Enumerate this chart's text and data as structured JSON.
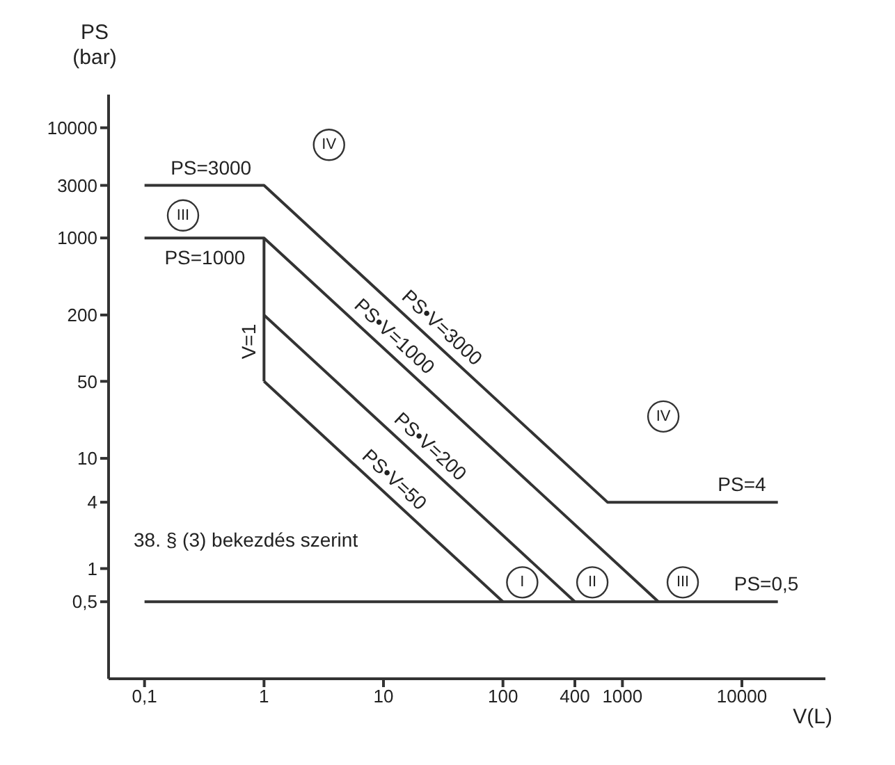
{
  "chart_data": {
    "type": "line",
    "xlabel": "V(L)",
    "ylabel": "PS (bar)",
    "log": "xy",
    "grid": false,
    "legend": false,
    "marker": "none",
    "line_style": "solid",
    "xlim": [
      0.05,
      50000
    ],
    "ylim": [
      0.1,
      20000
    ],
    "xticks": [
      {
        "value": 0.1,
        "label": "0,1"
      },
      1,
      10,
      100,
      400,
      1000,
      10000
    ],
    "yticks": [
      {
        "value": 0.5,
        "label": "0,5"
      },
      1,
      4,
      10,
      50,
      200,
      1000,
      3000,
      10000
    ],
    "series": [
      {
        "color": "#333333",
        "x": [
          0.1,
          1,
          750,
          20000
        ],
        "values": [
          3000,
          3000,
          4,
          4
        ]
      },
      {
        "color": "#333333",
        "x": [
          0.1,
          1,
          2000
        ],
        "values": [
          1000,
          1000,
          0.5
        ]
      },
      {
        "color": "#333333",
        "x": [
          1,
          1
        ],
        "values": [
          1000,
          50
        ]
      },
      {
        "color": "#333333",
        "x": [
          1,
          400
        ],
        "values": [
          200,
          0.5
        ]
      },
      {
        "color": "#333333",
        "x": [
          1,
          100
        ],
        "values": [
          50,
          0.5
        ]
      },
      {
        "color": "#333333",
        "x": [
          0.1,
          20000
        ],
        "values": [
          0.5,
          0.5
        ]
      }
    ],
    "annotations": [
      {
        "text": "PS=3000",
        "x": 0.36,
        "y": 3000
      },
      {
        "text": "PS=1000",
        "x": 0.32,
        "y": 1000
      },
      {
        "text": "V=1",
        "x": 1,
        "y": 115
      },
      {
        "text": "PS•V=3000",
        "x": 25,
        "y": 120
      },
      {
        "text": "PS•V=1000",
        "x": 10,
        "y": 100
      },
      {
        "text": "PS•V=200",
        "x": 20,
        "y": 10
      },
      {
        "text": "PS•V=50",
        "x": 10,
        "y": 5
      },
      {
        "text": "PS=4",
        "x": 10000,
        "y": 4
      },
      {
        "text": "PS=0,5",
        "x": 16000,
        "y": 0.5
      },
      "38. § (3) bekezdés szerint",
      {
        "text": "IV",
        "x": 3.5,
        "y": 7000
      },
      {
        "text": "III",
        "x": 0.21,
        "y": 1600
      },
      {
        "text": "IV",
        "x": 2200,
        "y": 24
      },
      {
        "text": "I",
        "x": 145,
        "y": 0.75
      },
      {
        "text": "II",
        "x": 560,
        "y": 0.75
      },
      {
        "text": "III",
        "x": 3200,
        "y": 0.75
      }
    ]
  }
}
